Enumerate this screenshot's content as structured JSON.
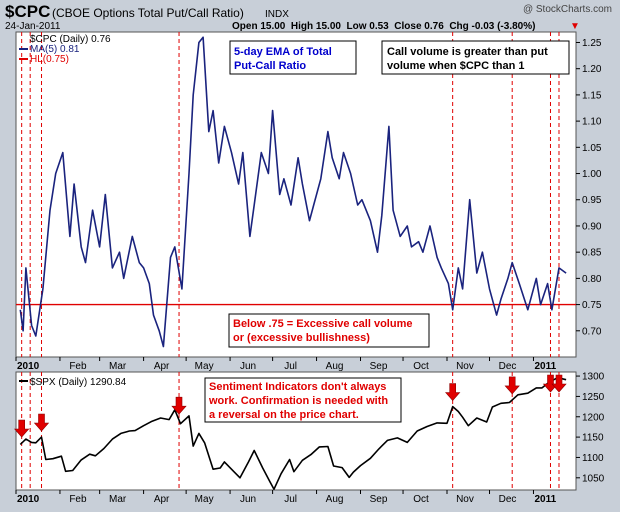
{
  "header": {
    "symbol": "$CPC",
    "name": "(CBOE Options Total Put/Call Ratio)",
    "exchange": "INDX",
    "date": "24-Jan-2011",
    "watermark": "@ StockCharts.com",
    "quote": "Open 15.00  High 15.00  Low 0.53  Close 0.76  Chg -0.03 (-3.80%)",
    "quote_arrow": "▼"
  },
  "colors": {
    "background": "#c8cfd8",
    "panel": "#ffffff",
    "cpc_line": "#1a237e",
    "spx_line": "#000000",
    "threshold_line": "#e00000",
    "vertical_markers": "#e00000",
    "annotation_blue": "#0000cc",
    "annotation_red": "#e00000"
  },
  "top_panel": {
    "legend": [
      {
        "text": "$CPC (Daily) 0.76",
        "color": "#000000",
        "swatch": "none"
      },
      {
        "text": "MA(5) 0.81",
        "color": "#1a237e",
        "swatch": "line"
      },
      {
        "text": "HL(0.75)",
        "color": "#e00000",
        "swatch": "line"
      }
    ],
    "annotations": {
      "ema_label": [
        "5-day EMA of Total",
        "Put-Call Ratio"
      ],
      "call_volume_label": [
        "Call volume is greater than put",
        "volume when $CPC than 1"
      ],
      "below_label": [
        "Below .75 = Excessive call volume",
        "or (excessive bullishness)"
      ]
    }
  },
  "bottom_panel": {
    "legend": {
      "text": "$SPX (Daily) 1290.84"
    },
    "annotation": [
      "Sentiment Indicators don't always",
      "work. Confirmation is needed with",
      "a reversal on the price chart."
    ]
  },
  "x_axis_labels": {
    "top": [
      "2010",
      "Feb",
      "Mar",
      "Apr",
      "May",
      "Jun",
      "Jul",
      "Aug",
      "Sep",
      "Oct",
      "Nov",
      "Dec",
      "2011"
    ],
    "bottom": [
      "2010",
      "Feb",
      "Mar",
      "Apr",
      "May",
      "Jun",
      "Jul",
      "Aug",
      "Sep",
      "Oct",
      "Nov",
      "Dec",
      "2011"
    ]
  },
  "chart_data": [
    {
      "type": "line",
      "title": "$CPC (CBOE Options Total Put/Call Ratio)",
      "ylim": [
        0.65,
        1.27
      ],
      "y_ticks": [
        0.7,
        0.75,
        0.8,
        0.85,
        0.9,
        0.95,
        1.0,
        1.05,
        1.1,
        1.15,
        1.2,
        1.25
      ],
      "y_tick_labels": [
        "0.70",
        "0.75",
        "0.80",
        "0.85",
        "0.90",
        "0.95",
        "1.00",
        "1.05",
        "1.10",
        "1.15",
        "1.20",
        "1.25"
      ],
      "threshold": 0.75,
      "grid": false,
      "series": [
        {
          "name": "MA(5)",
          "x": [
            "2010-01-04",
            "2010-01-06",
            "2010-01-08",
            "2010-01-12",
            "2010-01-15",
            "2010-01-20",
            "2010-01-25",
            "2010-01-29",
            "2010-02-03",
            "2010-02-08",
            "2010-02-11",
            "2010-02-16",
            "2010-02-19",
            "2010-02-24",
            "2010-03-01",
            "2010-03-05",
            "2010-03-10",
            "2010-03-15",
            "2010-03-18",
            "2010-03-24",
            "2010-03-29",
            "2010-04-01",
            "2010-04-05",
            "2010-04-08",
            "2010-04-12",
            "2010-04-15",
            "2010-04-20",
            "2010-04-23",
            "2010-04-28",
            "2010-05-03",
            "2010-05-06",
            "2010-05-10",
            "2010-05-13",
            "2010-05-17",
            "2010-05-20",
            "2010-05-24",
            "2010-05-28",
            "2010-06-02",
            "2010-06-07",
            "2010-06-10",
            "2010-06-15",
            "2010-06-18",
            "2010-06-23",
            "2010-06-28",
            "2010-07-01",
            "2010-07-06",
            "2010-07-09",
            "2010-07-14",
            "2010-07-19",
            "2010-07-22",
            "2010-07-27",
            "2010-07-30",
            "2010-08-04",
            "2010-08-09",
            "2010-08-12",
            "2010-08-17",
            "2010-08-20",
            "2010-08-25",
            "2010-08-30",
            "2010-09-02",
            "2010-09-08",
            "2010-09-13",
            "2010-09-16",
            "2010-09-21",
            "2010-09-24",
            "2010-09-29",
            "2010-10-04",
            "2010-10-07",
            "2010-10-12",
            "2010-10-15",
            "2010-10-20",
            "2010-10-25",
            "2010-10-28",
            "2010-11-02",
            "2010-11-05",
            "2010-11-09",
            "2010-11-12",
            "2010-11-17",
            "2010-11-22",
            "2010-11-26",
            "2010-12-01",
            "2010-12-06",
            "2010-12-09",
            "2010-12-14",
            "2010-12-17",
            "2010-12-22",
            "2010-12-28",
            "2011-01-03",
            "2011-01-06",
            "2011-01-11",
            "2011-01-14",
            "2011-01-19",
            "2011-01-24"
          ],
          "values": [
            0.74,
            0.7,
            0.82,
            0.71,
            0.69,
            0.78,
            0.93,
            1.0,
            1.04,
            0.88,
            0.98,
            0.86,
            0.83,
            0.93,
            0.86,
            0.96,
            0.82,
            0.85,
            0.8,
            0.88,
            0.83,
            0.82,
            0.79,
            0.73,
            0.7,
            0.67,
            0.84,
            0.86,
            0.78,
            1.0,
            1.15,
            1.25,
            1.26,
            1.08,
            1.12,
            1.02,
            1.09,
            1.04,
            0.98,
            1.04,
            0.88,
            0.94,
            1.04,
            1.0,
            1.12,
            0.96,
            0.99,
            0.94,
            1.03,
            0.98,
            0.91,
            0.94,
            0.99,
            1.08,
            1.03,
            0.99,
            1.04,
            1.0,
            0.94,
            0.95,
            0.91,
            0.85,
            0.92,
            1.09,
            0.93,
            0.88,
            0.9,
            0.86,
            0.87,
            0.85,
            0.9,
            0.84,
            0.82,
            0.79,
            0.74,
            0.82,
            0.78,
            0.95,
            0.81,
            0.85,
            0.78,
            0.73,
            0.76,
            0.8,
            0.83,
            0.79,
            0.74,
            0.8,
            0.75,
            0.79,
            0.74,
            0.82,
            0.81
          ]
        }
      ]
    },
    {
      "type": "line",
      "title": "$SPX (Daily) 1290.84",
      "ylim": [
        1020,
        1310
      ],
      "y_ticks": [
        1050,
        1100,
        1150,
        1200,
        1250,
        1300
      ],
      "y_tick_labels": [
        "1050",
        "1100",
        "1150",
        "1200",
        "1250",
        "1300"
      ],
      "grid": false,
      "series": [
        {
          "name": "$SPX",
          "x": [
            "2010-01-04",
            "2010-01-08",
            "2010-01-12",
            "2010-01-15",
            "2010-01-19",
            "2010-01-22",
            "2010-01-27",
            "2010-02-02",
            "2010-02-05",
            "2010-02-10",
            "2010-02-16",
            "2010-02-22",
            "2010-02-26",
            "2010-03-04",
            "2010-03-10",
            "2010-03-16",
            "2010-03-22",
            "2010-03-26",
            "2010-04-01",
            "2010-04-07",
            "2010-04-13",
            "2010-04-19",
            "2010-04-23",
            "2010-04-27",
            "2010-05-03",
            "2010-05-06",
            "2010-05-10",
            "2010-05-14",
            "2010-05-20",
            "2010-05-25",
            "2010-05-28",
            "2010-06-04",
            "2010-06-08",
            "2010-06-14",
            "2010-06-18",
            "2010-06-24",
            "2010-06-29",
            "2010-07-02",
            "2010-07-07",
            "2010-07-13",
            "2010-07-16",
            "2010-07-22",
            "2010-07-28",
            "2010-08-03",
            "2010-08-09",
            "2010-08-13",
            "2010-08-19",
            "2010-08-24",
            "2010-08-27",
            "2010-09-01",
            "2010-09-08",
            "2010-09-14",
            "2010-09-20",
            "2010-09-27",
            "2010-10-04",
            "2010-10-11",
            "2010-10-18",
            "2010-10-25",
            "2010-11-01",
            "2010-11-05",
            "2010-11-09",
            "2010-11-12",
            "2010-11-16",
            "2010-11-22",
            "2010-11-29",
            "2010-12-03",
            "2010-12-09",
            "2010-12-15",
            "2010-12-21",
            "2010-12-28",
            "2011-01-03",
            "2011-01-07",
            "2011-01-12",
            "2011-01-18",
            "2011-01-24"
          ],
          "values": [
            1132,
            1145,
            1137,
            1136,
            1150,
            1095,
            1097,
            1103,
            1066,
            1068,
            1094,
            1108,
            1104,
            1122,
            1145,
            1159,
            1165,
            1166,
            1178,
            1189,
            1197,
            1193,
            1217,
            1183,
            1202,
            1128,
            1159,
            1136,
            1071,
            1074,
            1089,
            1064,
            1050,
            1089,
            1117,
            1074,
            1041,
            1022,
            1060,
            1095,
            1065,
            1093,
            1107,
            1126,
            1127,
            1079,
            1075,
            1051,
            1064,
            1080,
            1098,
            1121,
            1142,
            1148,
            1137,
            1165,
            1176,
            1185,
            1184,
            1225,
            1213,
            1199,
            1178,
            1197,
            1187,
            1224,
            1233,
            1235,
            1254,
            1258,
            1271,
            1271,
            1285,
            1296,
            1291
          ]
        }
      ]
    }
  ],
  "markers": {
    "vertical_lines": [
      "2010-01-05",
      "2010-01-11",
      "2010-01-19",
      "2010-04-26",
      "2010-11-05",
      "2010-12-17",
      "2011-01-13",
      "2011-01-19"
    ],
    "arrows": [
      "2010-01-05",
      "2010-01-19",
      "2010-04-26",
      "2010-11-05",
      "2010-12-17",
      "2011-01-13",
      "2011-01-19"
    ]
  }
}
